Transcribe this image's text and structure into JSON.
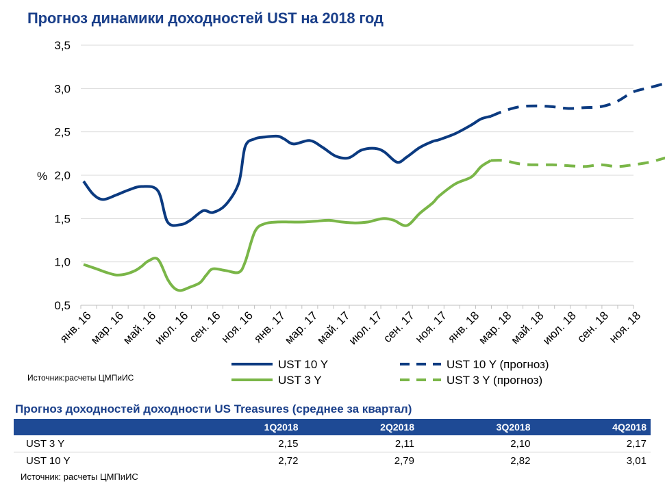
{
  "title": "Прогноз динамики доходностей UST на 2018 год",
  "chart_source": "Источник:расчеты ЦМПиИС",
  "chart_data": {
    "type": "line",
    "ylabel": "%",
    "ylim": [
      0.5,
      3.5
    ],
    "yticks": [
      "0,5",
      "1,0",
      "1,5",
      "2,0",
      "2,5",
      "3,0",
      "3,5"
    ],
    "ytick_values": [
      0.5,
      1.0,
      1.5,
      2.0,
      2.5,
      3.0,
      3.5
    ],
    "xticks": [
      "янв. 16",
      "мар. 16",
      "май. 16",
      "июл. 16",
      "сен. 16",
      "ноя. 16",
      "янв. 17",
      "мар. 17",
      "май. 17",
      "июл. 17",
      "сен. 17",
      "ноя. 17",
      "янв. 18",
      "мар. 18",
      "май. 18",
      "июл. 18",
      "сен. 18",
      "ноя. 18"
    ],
    "grid": true,
    "legend_position": "bottom",
    "series": [
      {
        "name": "UST 10 Y",
        "style": "solid",
        "color": "#0b3a80",
        "x": [
          0,
          0.3,
          0.6,
          1,
          1.4,
          1.8,
          2.3,
          2.6,
          3,
          3.3,
          3.7,
          4,
          4.4,
          4.8,
          5,
          5.3,
          5.6,
          6,
          6.2,
          6.5,
          7,
          7.4,
          7.8,
          8.2,
          8.6,
          9,
          9.3,
          9.7,
          10,
          10.4,
          10.8,
          11,
          11.5,
          12,
          12.3,
          12.6
        ],
        "y": [
          1.93,
          1.78,
          1.72,
          1.77,
          1.83,
          1.87,
          1.82,
          1.46,
          1.43,
          1.48,
          1.59,
          1.57,
          1.66,
          1.91,
          2.33,
          2.42,
          2.44,
          2.45,
          2.42,
          2.36,
          2.4,
          2.32,
          2.22,
          2.2,
          2.29,
          2.31,
          2.27,
          2.15,
          2.21,
          2.32,
          2.39,
          2.41,
          2.48,
          2.58,
          2.65,
          2.68
        ]
      },
      {
        "name": "UST 3 Y",
        "style": "solid",
        "color": "#7ab648",
        "x": [
          0,
          0.4,
          0.7,
          1,
          1.3,
          1.6,
          1.8,
          2,
          2.3,
          2.6,
          2.8,
          3,
          3.3,
          3.6,
          3.8,
          4,
          4.4,
          4.8,
          5,
          5.3,
          5.6,
          6,
          6.4,
          6.8,
          7.2,
          7.6,
          8,
          8.4,
          8.8,
          9,
          9.3,
          9.6,
          10,
          10.4,
          10.8,
          11,
          11.5,
          12,
          12.3,
          12.6
        ],
        "y": [
          0.97,
          0.92,
          0.88,
          0.85,
          0.86,
          0.9,
          0.95,
          1.01,
          1.03,
          0.8,
          0.7,
          0.67,
          0.71,
          0.76,
          0.85,
          0.92,
          0.9,
          0.88,
          1.0,
          1.35,
          1.44,
          1.46,
          1.46,
          1.46,
          1.47,
          1.48,
          1.46,
          1.45,
          1.46,
          1.48,
          1.5,
          1.48,
          1.42,
          1.56,
          1.68,
          1.76,
          1.9,
          1.98,
          2.1,
          2.17
        ]
      },
      {
        "name": "UST 10 Y (прогноз)",
        "style": "dashed",
        "color": "#0b3a80",
        "x": [
          12.6,
          13,
          13.5,
          14,
          14.5,
          15,
          15.5,
          16,
          16.5,
          17,
          17.5,
          18
        ],
        "y": [
          2.68,
          2.74,
          2.79,
          2.8,
          2.79,
          2.77,
          2.78,
          2.79,
          2.85,
          2.96,
          3.01,
          3.06
        ]
      },
      {
        "name": "UST 3 Y (прогноз)",
        "style": "dashed",
        "color": "#7ab648",
        "x": [
          12.6,
          13,
          13.5,
          14,
          14.5,
          15,
          15.5,
          16,
          16.5,
          17,
          17.5,
          18
        ],
        "y": [
          2.17,
          2.17,
          2.13,
          2.12,
          2.12,
          2.11,
          2.1,
          2.12,
          2.1,
          2.12,
          2.15,
          2.2
        ]
      }
    ]
  },
  "table": {
    "title": "Прогноз доходностей доходности US Treasures (среднее за квартал)",
    "columns": [
      "",
      "1Q2018",
      "2Q2018",
      "3Q2018",
      "4Q2018"
    ],
    "rows": [
      {
        "label": "UST 3 Y",
        "values": [
          "2,15",
          "2,11",
          "2,10",
          "2,17"
        ]
      },
      {
        "label": "UST 10 Y",
        "values": [
          "2,72",
          "2,79",
          "2,82",
          "3,01"
        ]
      }
    ],
    "header_color": "#1e4a95"
  },
  "table_source": "Источник: расчеты ЦМПиИС"
}
